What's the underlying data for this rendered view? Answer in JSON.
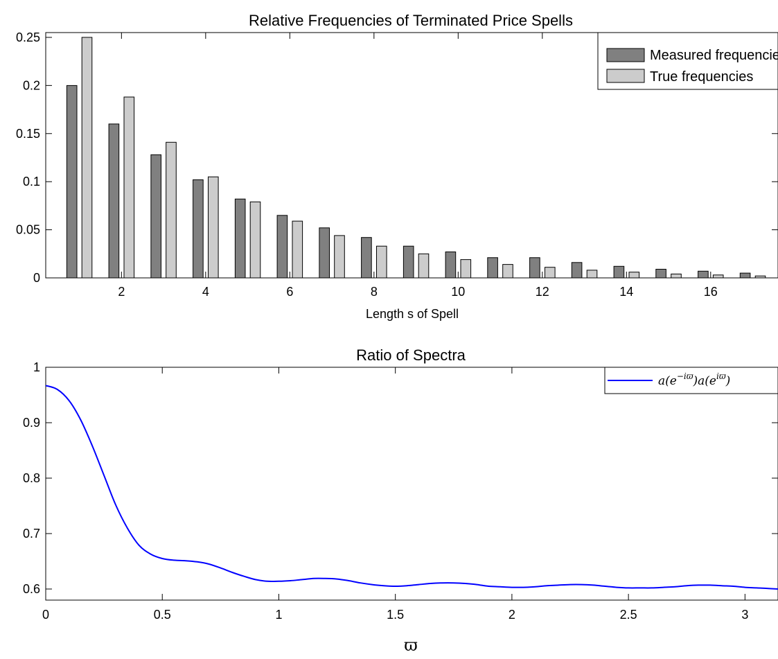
{
  "chart_data": [
    {
      "type": "bar",
      "title": "Relative Frequencies of Terminated Price Spells",
      "xlabel": "Length s of Spell",
      "ylabel": "",
      "xlim": [
        0.2,
        17.6
      ],
      "ylim": [
        0,
        0.255
      ],
      "xticks": [
        2,
        4,
        6,
        8,
        10,
        12,
        14,
        16
      ],
      "xtick_labels": [
        "2",
        "4",
        "6",
        "8",
        "10",
        "12",
        "14",
        "16"
      ],
      "yticks": [
        0,
        0.05,
        0.1,
        0.15,
        0.2,
        0.25
      ],
      "ytick_labels": [
        "0",
        "0.05",
        "0.1",
        "0.15",
        "0.2",
        "0.25"
      ],
      "categories": [
        1,
        2,
        3,
        4,
        5,
        6,
        7,
        8,
        9,
        10,
        11,
        12,
        13,
        14,
        15,
        16,
        17
      ],
      "legend_position": "top-right",
      "series": [
        {
          "name": "Measured frequencies",
          "color": "#808080",
          "values": [
            0.2,
            0.16,
            0.128,
            0.102,
            0.082,
            0.065,
            0.052,
            0.042,
            0.033,
            0.027,
            0.021,
            0.021,
            0.016,
            0.012,
            0.009,
            0.007,
            0.005
          ]
        },
        {
          "name": "True frequencies",
          "color": "#cccccc",
          "values": [
            0.25,
            0.188,
            0.141,
            0.105,
            0.079,
            0.059,
            0.044,
            0.033,
            0.025,
            0.019,
            0.014,
            0.011,
            0.008,
            0.006,
            0.004,
            0.003,
            0.002
          ]
        }
      ]
    },
    {
      "type": "line",
      "title": "Ratio of Spectra",
      "xlabel": "ϖ",
      "ylabel": "",
      "xlim": [
        0,
        3.1416
      ],
      "ylim": [
        0.58,
        1.0
      ],
      "xticks": [
        0,
        0.5,
        1,
        1.5,
        2,
        2.5,
        3
      ],
      "xtick_labels": [
        "0",
        "0.5",
        "1",
        "1.5",
        "2",
        "2.5",
        "3"
      ],
      "yticks": [
        0.6,
        0.7,
        0.8,
        0.9,
        1.0
      ],
      "ytick_labels": [
        "0.6",
        "0.7",
        "0.8",
        "0.9",
        "1"
      ],
      "legend_position": "top-right",
      "series": [
        {
          "name": "a(e^{-iϖ})a(e^{iϖ})",
          "color": "#0000ff",
          "x": [
            0,
            0.05,
            0.1,
            0.15,
            0.2,
            0.25,
            0.3,
            0.35,
            0.4,
            0.45,
            0.5,
            0.55,
            0.6,
            0.65,
            0.7,
            0.75,
            0.8,
            0.85,
            0.9,
            0.95,
            1.0,
            1.05,
            1.1,
            1.15,
            1.2,
            1.25,
            1.3,
            1.35,
            1.4,
            1.45,
            1.5,
            1.55,
            1.6,
            1.65,
            1.7,
            1.75,
            1.8,
            1.85,
            1.9,
            1.95,
            2.0,
            2.05,
            2.1,
            2.15,
            2.2,
            2.25,
            2.3,
            2.35,
            2.4,
            2.45,
            2.5,
            2.55,
            2.6,
            2.65,
            2.7,
            2.75,
            2.8,
            2.85,
            2.9,
            2.95,
            3.0,
            3.05,
            3.1,
            3.1416
          ],
          "y": [
            0.967,
            0.96,
            0.94,
            0.905,
            0.858,
            0.805,
            0.752,
            0.71,
            0.679,
            0.663,
            0.655,
            0.652,
            0.651,
            0.649,
            0.645,
            0.638,
            0.63,
            0.623,
            0.617,
            0.614,
            0.614,
            0.615,
            0.617,
            0.619,
            0.619,
            0.618,
            0.615,
            0.611,
            0.608,
            0.606,
            0.605,
            0.606,
            0.608,
            0.61,
            0.611,
            0.611,
            0.61,
            0.608,
            0.605,
            0.604,
            0.603,
            0.603,
            0.604,
            0.606,
            0.607,
            0.608,
            0.608,
            0.607,
            0.605,
            0.603,
            0.602,
            0.602,
            0.602,
            0.603,
            0.604,
            0.606,
            0.607,
            0.607,
            0.606,
            0.605,
            0.603,
            0.602,
            0.601,
            0.6
          ]
        }
      ]
    }
  ]
}
